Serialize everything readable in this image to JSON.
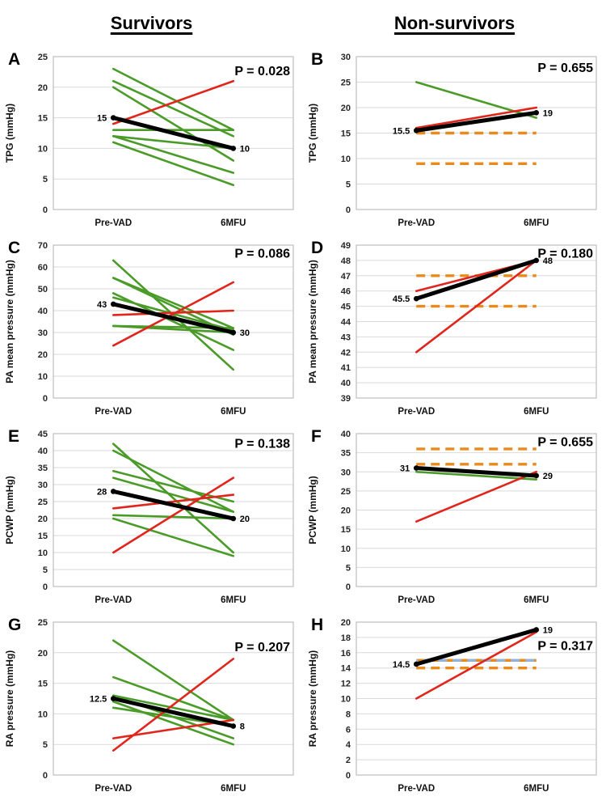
{
  "figure": {
    "column_titles": [
      "Survivors",
      "Non-survivors"
    ],
    "x_categories": [
      "Pre-VAD",
      "6MFU"
    ],
    "colors": {
      "green": "#4a9b28",
      "red": "#e0251c",
      "orange": "#e88a1c",
      "blue": "#95b3d7",
      "black": "#000000",
      "gridline": "#d9d9d9",
      "plot_border": "#bfbfbf"
    }
  },
  "chart_data": [
    {
      "panel_label": "A",
      "group": "Survivors",
      "type": "line",
      "ylabel": "TPG (mmHg)",
      "ylim": [
        0,
        25
      ],
      "ytick_step": 5,
      "x_categories": [
        "Pre-VAD",
        "6MFU"
      ],
      "p_value": "P = 0.028",
      "p_frac": 0.09,
      "series": [
        {
          "name": "individual",
          "color": "green",
          "values": [
            23,
            13
          ]
        },
        {
          "name": "individual",
          "color": "green",
          "values": [
            21,
            12
          ]
        },
        {
          "name": "individual",
          "color": "green",
          "values": [
            20,
            8
          ]
        },
        {
          "name": "individual",
          "color": "green",
          "values": [
            13,
            13
          ]
        },
        {
          "name": "individual",
          "color": "green",
          "values": [
            12,
            10
          ]
        },
        {
          "name": "individual",
          "color": "green",
          "values": [
            12,
            6
          ]
        },
        {
          "name": "individual",
          "color": "green",
          "values": [
            11,
            4
          ]
        },
        {
          "name": "individual",
          "color": "red",
          "values": [
            14,
            21
          ]
        },
        {
          "name": "median",
          "role": "median",
          "color": "black",
          "values": [
            15,
            10
          ],
          "labels": [
            "15",
            "10"
          ]
        }
      ],
      "reference_lines": []
    },
    {
      "panel_label": "B",
      "group": "Non-survivors",
      "type": "line",
      "ylabel": "TPG (mmHg)",
      "ylim": [
        0,
        30
      ],
      "ytick_step": 5,
      "x_categories": [
        "Pre-VAD",
        "6MFU"
      ],
      "p_value": "P = 0.655",
      "p_frac": 0.07,
      "series": [
        {
          "name": "individual",
          "color": "green",
          "values": [
            25,
            18
          ]
        },
        {
          "name": "individual",
          "color": "red",
          "values": [
            16,
            20
          ]
        },
        {
          "name": "median",
          "role": "median",
          "color": "black",
          "values": [
            15.5,
            19
          ],
          "labels": [
            "15.5",
            "19"
          ]
        }
      ],
      "reference_lines": [
        {
          "y": 15,
          "color": "orange",
          "style": "dashed"
        },
        {
          "y": 9,
          "color": "orange",
          "style": "dashed"
        }
      ]
    },
    {
      "panel_label": "C",
      "group": "Survivors",
      "type": "line",
      "ylabel": "PA mean pressure (mmHg)",
      "ylim": [
        0,
        70
      ],
      "ytick_step": 10,
      "x_categories": [
        "Pre-VAD",
        "6MFU"
      ],
      "p_value": "P = 0.086",
      "p_frac": 0.05,
      "series": [
        {
          "name": "individual",
          "color": "green",
          "values": [
            63,
            13
          ]
        },
        {
          "name": "individual",
          "color": "green",
          "values": [
            55,
            32
          ]
        },
        {
          "name": "individual",
          "color": "green",
          "values": [
            55,
            29
          ]
        },
        {
          "name": "individual",
          "color": "green",
          "values": [
            48,
            22
          ]
        },
        {
          "name": "individual",
          "color": "green",
          "values": [
            46,
            31
          ]
        },
        {
          "name": "individual",
          "color": "green",
          "values": [
            33,
            32
          ]
        },
        {
          "name": "individual",
          "color": "green",
          "values": [
            33,
            30
          ]
        },
        {
          "name": "individual",
          "color": "red",
          "values": [
            38,
            40
          ]
        },
        {
          "name": "individual",
          "color": "red",
          "values": [
            24,
            53
          ]
        },
        {
          "name": "median",
          "role": "median",
          "color": "black",
          "values": [
            43,
            30
          ],
          "labels": [
            "43",
            "30"
          ]
        }
      ],
      "reference_lines": []
    },
    {
      "panel_label": "D",
      "group": "Non-survivors",
      "type": "line",
      "ylabel": "PA mean pressure (mmHg)",
      "ylim": [
        39,
        49
      ],
      "ytick_step": 1,
      "x_categories": [
        "Pre-VAD",
        "6MFU"
      ],
      "p_value": "P = 0.180",
      "p_frac": 0.05,
      "series": [
        {
          "name": "individual",
          "color": "red",
          "values": [
            46,
            48
          ]
        },
        {
          "name": "individual",
          "color": "red",
          "values": [
            42,
            48
          ]
        },
        {
          "name": "median",
          "role": "median",
          "color": "black",
          "values": [
            45.5,
            48
          ],
          "labels": [
            "45.5",
            "48"
          ]
        }
      ],
      "reference_lines": [
        {
          "y": 47,
          "color": "orange",
          "style": "dashed"
        },
        {
          "y": 45,
          "color": "orange",
          "style": "dashed"
        }
      ]
    },
    {
      "panel_label": "E",
      "group": "Survivors",
      "type": "line",
      "ylabel": "PCWP (mmHg)",
      "ylim": [
        0,
        45
      ],
      "ytick_step": 5,
      "x_categories": [
        "Pre-VAD",
        "6MFU"
      ],
      "p_value": "P = 0.138",
      "p_frac": 0.06,
      "series": [
        {
          "name": "individual",
          "color": "green",
          "values": [
            42,
            10
          ]
        },
        {
          "name": "individual",
          "color": "green",
          "values": [
            40,
            22
          ]
        },
        {
          "name": "individual",
          "color": "green",
          "values": [
            34,
            25
          ]
        },
        {
          "name": "individual",
          "color": "green",
          "values": [
            32,
            22
          ]
        },
        {
          "name": "individual",
          "color": "green",
          "values": [
            21,
            20
          ]
        },
        {
          "name": "individual",
          "color": "green",
          "values": [
            20,
            9
          ]
        },
        {
          "name": "individual",
          "color": "red",
          "values": [
            23,
            27
          ]
        },
        {
          "name": "individual",
          "color": "red",
          "values": [
            10,
            32
          ]
        },
        {
          "name": "median",
          "role": "median",
          "color": "black",
          "values": [
            28,
            20
          ],
          "labels": [
            "28",
            "20"
          ]
        }
      ],
      "reference_lines": []
    },
    {
      "panel_label": "F",
      "group": "Non-survivors",
      "type": "line",
      "ylabel": "PCWP (mmHg)",
      "ylim": [
        0,
        40
      ],
      "ytick_step": 5,
      "x_categories": [
        "Pre-VAD",
        "6MFU"
      ],
      "p_value": "P = 0.655",
      "p_frac": 0.05,
      "series": [
        {
          "name": "individual",
          "color": "green",
          "values": [
            30,
            28
          ]
        },
        {
          "name": "individual",
          "color": "red",
          "values": [
            17,
            30
          ]
        },
        {
          "name": "median",
          "role": "median",
          "color": "black",
          "values": [
            31,
            29
          ],
          "labels": [
            "31",
            "29"
          ]
        }
      ],
      "reference_lines": [
        {
          "y": 36,
          "color": "orange",
          "style": "dashed"
        },
        {
          "y": 32,
          "color": "orange",
          "style": "dashed"
        }
      ]
    },
    {
      "panel_label": "G",
      "group": "Survivors",
      "type": "line",
      "ylabel": "RA pressure (mmHg)",
      "ylim": [
        0,
        25
      ],
      "ytick_step": 5,
      "x_categories": [
        "Pre-VAD",
        "6MFU"
      ],
      "p_value": "P = 0.207",
      "p_frac": 0.16,
      "series": [
        {
          "name": "individual",
          "color": "green",
          "values": [
            22,
            9
          ]
        },
        {
          "name": "individual",
          "color": "green",
          "values": [
            16,
            9
          ]
        },
        {
          "name": "individual",
          "color": "green",
          "values": [
            13,
            9
          ]
        },
        {
          "name": "individual",
          "color": "green",
          "values": [
            13,
            6
          ]
        },
        {
          "name": "individual",
          "color": "green",
          "values": [
            12,
            5
          ]
        },
        {
          "name": "individual",
          "color": "green",
          "values": [
            11,
            8
          ]
        },
        {
          "name": "individual",
          "color": "red",
          "values": [
            6,
            9
          ]
        },
        {
          "name": "individual",
          "color": "red",
          "values": [
            4,
            19
          ]
        },
        {
          "name": "median",
          "role": "median",
          "color": "black",
          "values": [
            12.5,
            8
          ],
          "labels": [
            "12.5",
            "8"
          ]
        }
      ],
      "reference_lines": []
    },
    {
      "panel_label": "H",
      "group": "Non-survivors",
      "type": "line",
      "ylabel": "RA pressure (mmHg)",
      "ylim": [
        0,
        20
      ],
      "ytick_step": 2,
      "x_categories": [
        "Pre-VAD",
        "6MFU"
      ],
      "p_value": "P = 0.317",
      "p_frac": 0.15,
      "series": [
        {
          "name": "individual",
          "color": "red",
          "values": [
            10,
            18.7
          ]
        },
        {
          "name": "median",
          "role": "median",
          "color": "black",
          "values": [
            14.5,
            19
          ],
          "labels": [
            "14.5",
            "19"
          ]
        }
      ],
      "reference_lines": [
        {
          "y": 15,
          "color": "orange",
          "style": "dashed"
        },
        {
          "y": 15,
          "color": "blue",
          "style": "dashed"
        },
        {
          "y": 14,
          "color": "orange",
          "style": "dashed"
        }
      ]
    }
  ]
}
